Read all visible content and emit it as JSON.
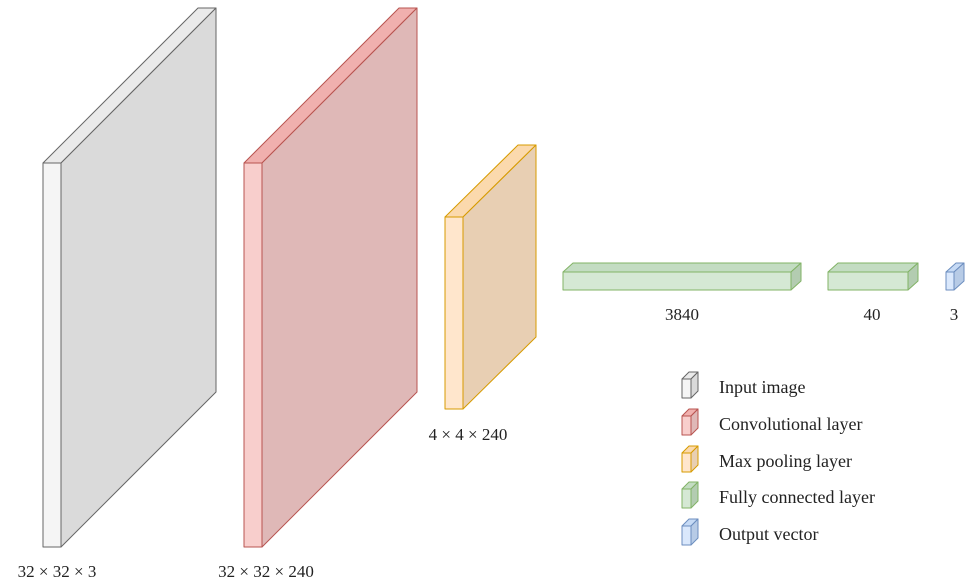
{
  "layers": [
    {
      "id": "input",
      "type": "input_image",
      "label": "32 × 32 × 3"
    },
    {
      "id": "conv",
      "type": "convolutional",
      "label": "32 × 32 × 240"
    },
    {
      "id": "pool",
      "type": "max_pooling",
      "label": "4 × 4 × 240"
    },
    {
      "id": "fc1",
      "type": "fully_connected",
      "label": "3840"
    },
    {
      "id": "fc2",
      "type": "fully_connected",
      "label": "40"
    },
    {
      "id": "out",
      "type": "output_vector",
      "label": "3"
    }
  ],
  "legend": [
    {
      "type": "input_image",
      "label": "Input image"
    },
    {
      "type": "convolutional",
      "label": "Convolutional layer"
    },
    {
      "type": "max_pooling",
      "label": "Max pooling layer"
    },
    {
      "type": "fully_connected",
      "label": "Fully connected layer"
    },
    {
      "type": "output_vector",
      "label": "Output vector"
    }
  ],
  "colors": {
    "input_image": {
      "front": "#f5f5f5",
      "top": "#eaeaea",
      "side": "#dadada",
      "stroke": "#666666"
    },
    "convolutional": {
      "front": "#f8cecc",
      "top": "#f0b0ae",
      "side": "#dfb8b7",
      "stroke": "#b85450"
    },
    "max_pooling": {
      "front": "#ffe6cc",
      "top": "#fbd9ad",
      "side": "#e8cfb3",
      "stroke": "#d79b00"
    },
    "fully_connected": {
      "front": "#d5e8d4",
      "top": "#c3dcc2",
      "side": "#b3ccb1",
      "stroke": "#82b366"
    },
    "output_vector": {
      "front": "#dae8fc",
      "top": "#c6daf5",
      "side": "#b7cbe6",
      "stroke": "#6c8ebf"
    }
  }
}
